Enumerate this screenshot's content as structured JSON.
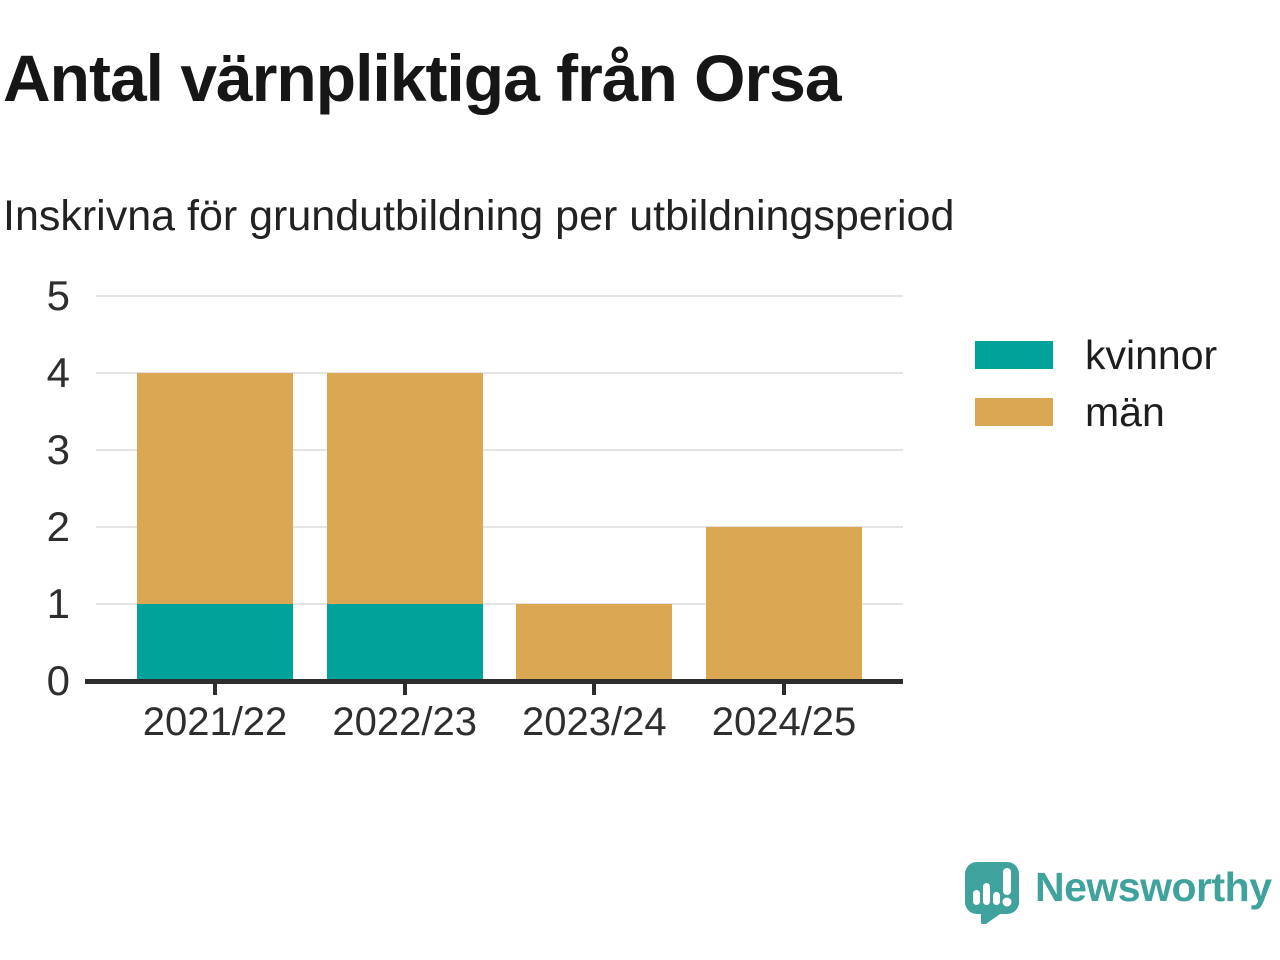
{
  "chart_data": {
    "type": "bar",
    "stacked": true,
    "title": "Antal värnpliktiga från Orsa",
    "subtitle": "Inskrivna för grundutbildning per utbildningsperiod",
    "categories": [
      "2021/22",
      "2022/23",
      "2023/24",
      "2024/25"
    ],
    "series": [
      {
        "name": "kvinnor",
        "color": "#00a29a",
        "values": [
          1,
          1,
          0,
          0
        ]
      },
      {
        "name": "män",
        "color": "#daa852",
        "values": [
          3,
          3,
          1,
          2
        ]
      }
    ],
    "totals": [
      4,
      4,
      1,
      2
    ],
    "ylim": [
      0,
      5
    ],
    "yticks": [
      0,
      1,
      2,
      3,
      4,
      5
    ],
    "grid": true,
    "legend_position": "right",
    "axis_color": "#2d2d2d",
    "gridline_color": "#e4e4e4"
  },
  "branding": {
    "logo_text": "Newsworthy",
    "logo_color": "#3fa29c",
    "logo_icon": "speech-bubble-bar-chart-icon"
  },
  "colors": {
    "background": "#ffffff",
    "title_text": "#161616",
    "label_text": "#2e2e2e"
  }
}
